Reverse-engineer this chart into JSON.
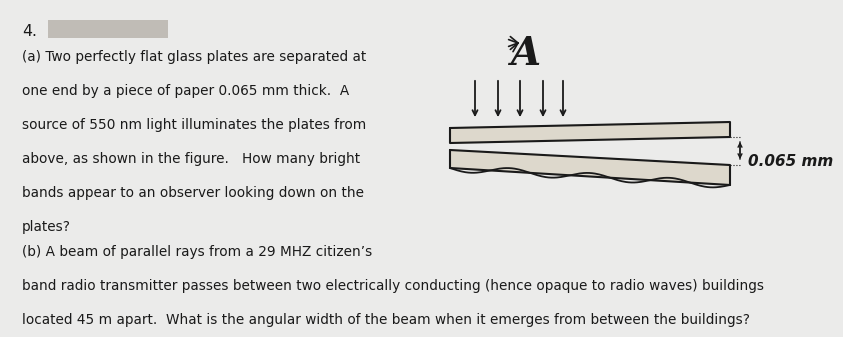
{
  "background_color": "#ebebea",
  "number_label": "4.",
  "part_a_text_lines": [
    "(a) Two perfectly flat glass plates are separated at",
    "one end by a piece of paper 0.065 mm thick.  A",
    "source of 550 nm light illuminates the plates from",
    "above, as shown in the figure.   How many bright",
    "bands appear to an observer looking down on the",
    "plates?"
  ],
  "part_b_text_lines": [
    "(b) A beam of parallel rays from a 29 MHZ citizen’s",
    "band radio transmitter passes between two electrically conducting (hence opaque to radio waves) buildings",
    "located 45 m apart.  What is the angular width of the beam when it emerges from between the buildings?"
  ],
  "text_color": "#1a1a1a",
  "font_size": 9.8,
  "annotation_text": "0.065 mm",
  "redact_color": "#c0bcb6"
}
